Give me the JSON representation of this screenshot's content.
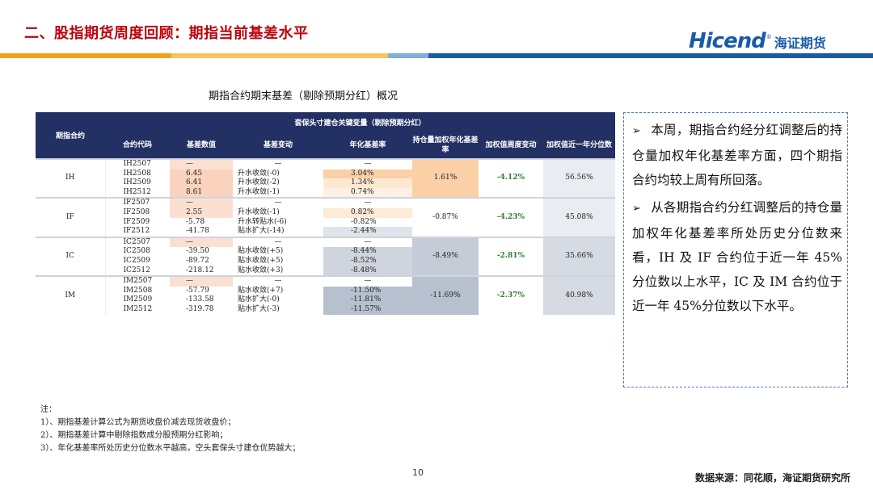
{
  "header": {
    "title": "二、股指期货周度回顾：期指当前基差水平",
    "logo_en": "Hicend",
    "logo_reg": "®",
    "logo_cn": "海证期货"
  },
  "table": {
    "title": "期指合约期末基差（剔除预期分红）概况",
    "group_header": "期指合约",
    "span_header": "套保头寸建仓关键变量（剔除预期分红）",
    "columns": [
      "合约代码",
      "基差数值",
      "基差变动",
      "年化基差率",
      "持仓量加权年化基差率",
      "加权值周度变动",
      "加权值近一年分位数"
    ],
    "groups": [
      {
        "name": "IH",
        "weighted_rate": "1.61%",
        "weekly_change": "-4.12%",
        "percentile": "56.56%",
        "rows": [
          {
            "code": "IH2507",
            "basis": "—",
            "change": "—",
            "rate": "—"
          },
          {
            "code": "IH2508",
            "basis": "6.45",
            "change": "升水收敛(-0)",
            "rate": "3.04%"
          },
          {
            "code": "IH2509",
            "basis": "6.41",
            "change": "升水收敛(-2)",
            "rate": "1.34%"
          },
          {
            "code": "IH2512",
            "basis": "8.61",
            "change": "升水收敛(-1)",
            "rate": "0.74%"
          }
        ]
      },
      {
        "name": "IF",
        "weighted_rate": "-0.87%",
        "weekly_change": "-4.23%",
        "percentile": "45.08%",
        "rows": [
          {
            "code": "IF2507",
            "basis": "—",
            "change": "—",
            "rate": "—"
          },
          {
            "code": "IF2508",
            "basis": "2.55",
            "change": "升水收敛(-1)",
            "rate": "0.82%"
          },
          {
            "code": "IF2509",
            "basis": "-5.78",
            "change": "升水转贴水(-6)",
            "rate": "-0.82%"
          },
          {
            "code": "IF2512",
            "basis": "-41.78",
            "change": "贴水扩大(-14)",
            "rate": "-2.44%"
          }
        ]
      },
      {
        "name": "IC",
        "weighted_rate": "-8.49%",
        "weekly_change": "-2.81%",
        "percentile": "35.66%",
        "rows": [
          {
            "code": "IC2507",
            "basis": "—",
            "change": "—",
            "rate": "—"
          },
          {
            "code": "IC2508",
            "basis": "-39.50",
            "change": "贴水收敛(+5)",
            "rate": "-8.44%"
          },
          {
            "code": "IC2509",
            "basis": "-89.72",
            "change": "贴水收敛(+5)",
            "rate": "-8.52%"
          },
          {
            "code": "IC2512",
            "basis": "-218.12",
            "change": "贴水收敛(+3)",
            "rate": "-8.48%"
          }
        ]
      },
      {
        "name": "IM",
        "weighted_rate": "-11.69%",
        "weekly_change": "-2.37%",
        "percentile": "40.98%",
        "rows": [
          {
            "code": "IM2507",
            "basis": "—",
            "change": "—",
            "rate": "—"
          },
          {
            "code": "IM2508",
            "basis": "-57.79",
            "change": "贴水收敛(+7)",
            "rate": "-11.50%"
          },
          {
            "code": "IM2509",
            "basis": "-133.58",
            "change": "贴水扩大(-0)",
            "rate": "-11.81%"
          },
          {
            "code": "IM2512",
            "basis": "-319.78",
            "change": "贴水扩大(-3)",
            "rate": "-11.57%"
          }
        ]
      }
    ]
  },
  "summary": {
    "arrow_icon": "➢",
    "points": [
      "本周，期指合约经分红调整后的持仓量加权年化基差率方面，四个期指合约均较上周有所回落。",
      "从各期指合约分红调整后的持仓量加权年化基差率所处历史分位数来看，IH 及 IF 合约位于近一年 45%分位数以上水平，IC 及 IM 合约位于近一年 45%分位数以下水平。"
    ]
  },
  "notes": {
    "label": "注：",
    "items": [
      "1）、期指基差计算公式为期货收盘价减去现货收盘价；",
      "2）、期指基差计算中剔除指数成分股预期分红影响；",
      "3）、年化基差率所处历史分位数水平越高，空头套保头寸建仓优势越大；"
    ]
  },
  "footer": {
    "page_number": "10",
    "source": "数据来源：同花顺，海证期货研究所"
  }
}
